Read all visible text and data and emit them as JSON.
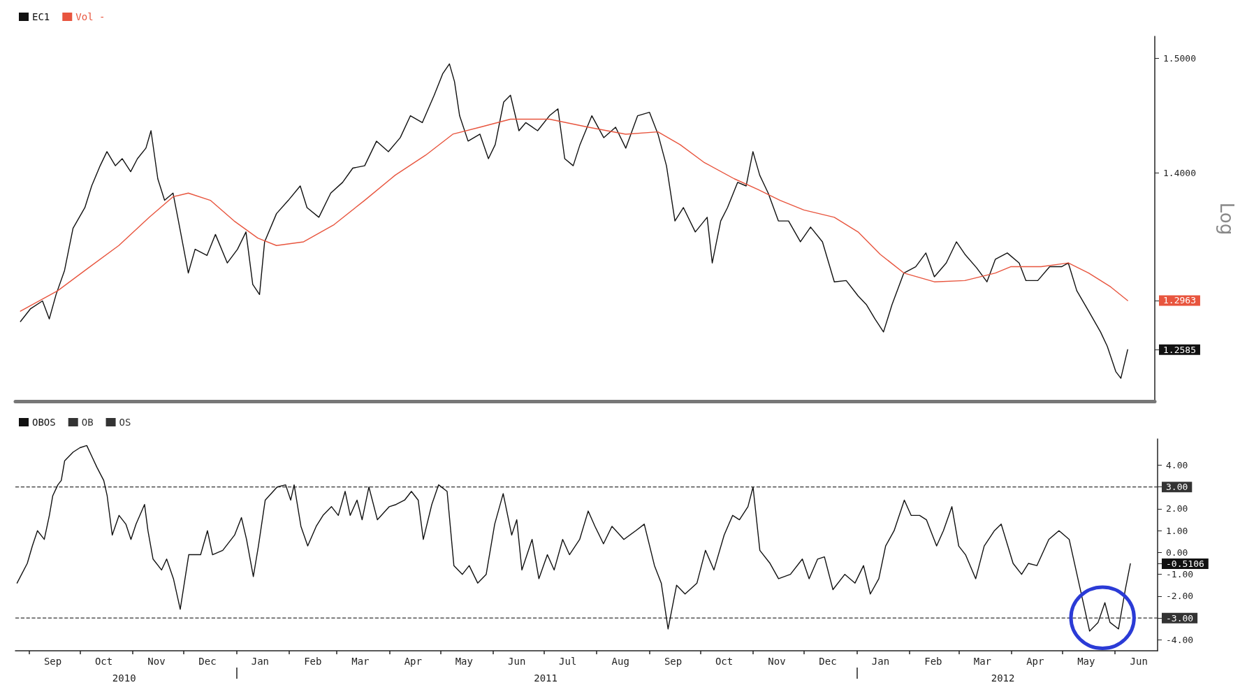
{
  "chart_data": [
    {
      "type": "line",
      "legend": "top left",
      "marker": "none",
      "log": true,
      "tick_labels": "y",
      "ylabel": "Log",
      "xlim": [
        "2010-08-24",
        "2012-06-26"
      ],
      "ylim": [
        1.22,
        1.52
      ],
      "yticks": [
        {
          "value": 1.5,
          "label": "1.5000"
        },
        {
          "value": 1.4,
          "label": "1.4000"
        },
        {
          "value": 1.2963,
          "label": "1.2963"
        },
        {
          "value": 1.2585,
          "label": "1.2585"
        }
      ],
      "series": [
        {
          "name": "EC1",
          "color": "#111111",
          "x": [
            "2010-08-27",
            "2010-09-02",
            "2010-09-09",
            "2010-09-13",
            "2010-09-17",
            "2010-09-22",
            "2010-09-27",
            "2010-10-04",
            "2010-10-08",
            "2010-10-13",
            "2010-10-17",
            "2010-10-22",
            "2010-10-26",
            "2010-10-31",
            "2010-11-04",
            "2010-11-09",
            "2010-11-12",
            "2010-11-16",
            "2010-11-20",
            "2010-11-25",
            "2010-11-29",
            "2010-12-04",
            "2010-12-08",
            "2010-12-15",
            "2010-12-20",
            "2010-12-27",
            "2011-01-02",
            "2011-01-07",
            "2011-01-11",
            "2011-01-15",
            "2011-01-18",
            "2011-01-25",
            "2011-02-01",
            "2011-02-08",
            "2011-02-12",
            "2011-02-19",
            "2011-02-26",
            "2011-03-05",
            "2011-03-11",
            "2011-03-18",
            "2011-03-25",
            "2011-04-01",
            "2011-04-08",
            "2011-04-14",
            "2011-04-21",
            "2011-04-28",
            "2011-05-03",
            "2011-05-07",
            "2011-05-10",
            "2011-05-13",
            "2011-05-18",
            "2011-05-25",
            "2011-05-30",
            "2011-06-03",
            "2011-06-08",
            "2011-06-12",
            "2011-06-17",
            "2011-06-21",
            "2011-06-28",
            "2011-07-05",
            "2011-07-10",
            "2011-07-14",
            "2011-07-19",
            "2011-07-23",
            "2011-07-30",
            "2011-08-06",
            "2011-08-13",
            "2011-08-19",
            "2011-08-26",
            "2011-09-02",
            "2011-09-07",
            "2011-09-12",
            "2011-09-17",
            "2011-09-22",
            "2011-09-29",
            "2011-10-06",
            "2011-10-09",
            "2011-10-14",
            "2011-10-18",
            "2011-10-24",
            "2011-10-29",
            "2011-11-02",
            "2011-11-06",
            "2011-11-11",
            "2011-11-17",
            "2011-11-23",
            "2011-11-30",
            "2011-12-06",
            "2011-12-13",
            "2011-12-20",
            "2011-12-27",
            "2012-01-03",
            "2012-01-08",
            "2012-01-13",
            "2012-01-18",
            "2012-01-23",
            "2012-01-30",
            "2012-02-06",
            "2012-02-12",
            "2012-02-17",
            "2012-02-24",
            "2012-03-01",
            "2012-03-06",
            "2012-03-13",
            "2012-03-19",
            "2012-03-24",
            "2012-03-31",
            "2012-04-07",
            "2012-04-11",
            "2012-04-18",
            "2012-04-25",
            "2012-05-02",
            "2012-05-06",
            "2012-05-11",
            "2012-05-18",
            "2012-05-25",
            "2012-05-29",
            "2012-06-03",
            "2012-06-06",
            "2012-06-10"
          ],
          "values": [
            1.28,
            1.29,
            1.296,
            1.282,
            1.301,
            1.32,
            1.354,
            1.371,
            1.389,
            1.406,
            1.418,
            1.406,
            1.412,
            1.401,
            1.412,
            1.421,
            1.436,
            1.395,
            1.377,
            1.383,
            1.354,
            1.318,
            1.337,
            1.332,
            1.349,
            1.326,
            1.337,
            1.351,
            1.309,
            1.301,
            1.343,
            1.366,
            1.377,
            1.389,
            1.371,
            1.363,
            1.383,
            1.392,
            1.404,
            1.406,
            1.427,
            1.418,
            1.43,
            1.449,
            1.443,
            1.467,
            1.486,
            1.495,
            1.479,
            1.449,
            1.427,
            1.433,
            1.412,
            1.424,
            1.461,
            1.467,
            1.436,
            1.443,
            1.436,
            1.449,
            1.455,
            1.412,
            1.406,
            1.424,
            1.449,
            1.43,
            1.439,
            1.421,
            1.449,
            1.452,
            1.433,
            1.406,
            1.36,
            1.371,
            1.351,
            1.363,
            1.326,
            1.36,
            1.371,
            1.392,
            1.389,
            1.418,
            1.398,
            1.383,
            1.36,
            1.36,
            1.343,
            1.355,
            1.343,
            1.311,
            1.312,
            1.3,
            1.293,
            1.282,
            1.272,
            1.293,
            1.318,
            1.323,
            1.334,
            1.315,
            1.326,
            1.343,
            1.333,
            1.322,
            1.311,
            1.329,
            1.334,
            1.326,
            1.312,
            1.312,
            1.323,
            1.323,
            1.326,
            1.304,
            1.288,
            1.272,
            1.261,
            1.242,
            1.237,
            1.2585
          ]
        },
        {
          "name": "Vol -",
          "color": "#e8553e",
          "x": [
            "2010-08-27",
            "2010-09-18",
            "2010-10-06",
            "2010-10-24",
            "2010-11-11",
            "2010-11-25",
            "2010-12-04",
            "2010-12-17",
            "2010-12-31",
            "2011-01-14",
            "2011-01-25",
            "2011-02-10",
            "2011-02-28",
            "2011-03-18",
            "2011-04-05",
            "2011-04-23",
            "2011-05-09",
            "2011-05-25",
            "2011-06-12",
            "2011-07-05",
            "2011-07-28",
            "2011-08-19",
            "2011-09-07",
            "2011-09-20",
            "2011-10-04",
            "2011-10-22",
            "2011-11-05",
            "2011-11-18",
            "2011-12-02",
            "2011-12-20",
            "2012-01-03",
            "2012-01-16",
            "2012-01-30",
            "2012-02-17",
            "2012-03-06",
            "2012-03-24",
            "2012-04-02",
            "2012-04-20",
            "2012-05-06",
            "2012-05-18",
            "2012-05-31",
            "2012-06-10"
          ],
          "values": [
            1.288,
            1.304,
            1.322,
            1.34,
            1.363,
            1.38,
            1.383,
            1.377,
            1.36,
            1.346,
            1.34,
            1.343,
            1.357,
            1.377,
            1.398,
            1.415,
            1.433,
            1.439,
            1.446,
            1.446,
            1.439,
            1.433,
            1.435,
            1.424,
            1.409,
            1.395,
            1.386,
            1.377,
            1.369,
            1.363,
            1.351,
            1.333,
            1.318,
            1.311,
            1.312,
            1.318,
            1.323,
            1.323,
            1.326,
            1.318,
            1.307,
            1.2963
          ]
        }
      ]
    },
    {
      "type": "line",
      "legend": "top left",
      "marker": "none",
      "xlim": [
        "2010-08-24",
        "2012-06-26"
      ],
      "ylim": [
        -4.5,
        5.2
      ],
      "yticks": [
        {
          "value": 4,
          "label": "4.00"
        },
        {
          "value": 3,
          "label": "3.00"
        },
        {
          "value": 2,
          "label": "2.00"
        },
        {
          "value": 1,
          "label": "1.00"
        },
        {
          "value": 0,
          "label": "0.00"
        },
        {
          "value": -0.5106,
          "label": "-0.5106"
        },
        {
          "value": -1,
          "label": "-1.00"
        },
        {
          "value": -2,
          "label": "-2.00"
        },
        {
          "value": -3,
          "label": "-3.00"
        },
        {
          "value": -4,
          "label": "-4.00"
        }
      ],
      "xticks": [
        {
          "value": "2010-09-01",
          "label": null
        },
        {
          "value": "2010-09-15",
          "label": "Sep"
        },
        {
          "value": "2010-10-01",
          "label": null
        },
        {
          "value": "2010-10-15",
          "label": "Oct"
        },
        {
          "value": "2010-11-01",
          "label": null
        },
        {
          "value": "2010-11-15",
          "label": "Nov"
        },
        {
          "value": "2010-12-01",
          "label": null
        },
        {
          "value": "2010-12-15",
          "label": "Dec"
        },
        {
          "value": "2011-01-01",
          "label": null
        },
        {
          "value": "2011-01-15",
          "label": "Jan"
        },
        {
          "value": "2011-02-01",
          "label": null
        },
        {
          "value": "2011-02-15",
          "label": "Feb"
        },
        {
          "value": "2011-03-01",
          "label": null
        },
        {
          "value": "2011-03-15",
          "label": "Mar"
        },
        {
          "value": "2011-04-01",
          "label": null
        },
        {
          "value": "2011-04-15",
          "label": "Apr"
        },
        {
          "value": "2011-05-01",
          "label": null
        },
        {
          "value": "2011-05-15",
          "label": "May"
        },
        {
          "value": "2011-06-01",
          "label": null
        },
        {
          "value": "2011-06-15",
          "label": "Jun"
        },
        {
          "value": "2011-07-01",
          "label": null
        },
        {
          "value": "2011-07-15",
          "label": "Jul"
        },
        {
          "value": "2011-08-01",
          "label": null
        },
        {
          "value": "2011-08-15",
          "label": "Aug"
        },
        {
          "value": "2011-09-01",
          "label": null
        },
        {
          "value": "2011-09-15",
          "label": "Sep"
        },
        {
          "value": "2011-10-01",
          "label": null
        },
        {
          "value": "2011-10-15",
          "label": "Oct"
        },
        {
          "value": "2011-11-01",
          "label": null
        },
        {
          "value": "2011-11-15",
          "label": "Nov"
        },
        {
          "value": "2011-12-01",
          "label": null
        },
        {
          "value": "2011-12-15",
          "label": "Dec"
        },
        {
          "value": "2012-01-01",
          "label": null
        },
        {
          "value": "2012-01-15",
          "label": "Jan"
        },
        {
          "value": "2012-02-01",
          "label": null
        },
        {
          "value": "2012-02-15",
          "label": "Feb"
        },
        {
          "value": "2012-03-01",
          "label": null
        },
        {
          "value": "2012-03-15",
          "label": "Mar"
        },
        {
          "value": "2012-04-01",
          "label": null
        },
        {
          "value": "2012-04-15",
          "label": "Apr"
        },
        {
          "value": "2012-05-01",
          "label": null
        },
        {
          "value": "2012-05-15",
          "label": "May"
        },
        {
          "value": "2012-06-01",
          "label": null
        },
        {
          "value": "2012-06-15",
          "label": "Jun"
        }
      ],
      "x2lim": [
        "2010-08-24",
        "2012-06-26"
      ],
      "x2ticks": [
        {
          "value": "2010-10-27",
          "label": "2010"
        },
        {
          "value": "2011-01-01",
          "label": null
        },
        {
          "value": "2011-07-02",
          "label": "2011"
        },
        {
          "value": "2012-01-01",
          "label": null
        },
        {
          "value": "2012-03-27",
          "label": "2012"
        }
      ],
      "ref_lines": [
        {
          "axis": "y",
          "value": 3,
          "label": "OB",
          "color": "#333333",
          "line_style": "dashed"
        },
        {
          "axis": "y",
          "value": -3,
          "label": "OS",
          "color": "#333333",
          "line_style": "dashed"
        }
      ],
      "series": [
        {
          "name": "OBOS",
          "color": "#111111",
          "x": [
            "2010-08-25",
            "2010-08-31",
            "2010-09-03",
            "2010-09-06",
            "2010-09-10",
            "2010-09-13",
            "2010-09-15",
            "2010-09-18",
            "2010-09-20",
            "2010-09-22",
            "2010-09-27",
            "2010-10-01",
            "2010-10-05",
            "2010-10-08",
            "2010-10-11",
            "2010-10-15",
            "2010-10-17",
            "2010-10-20",
            "2010-10-24",
            "2010-10-28",
            "2010-10-31",
            "2010-11-03",
            "2010-11-08",
            "2010-11-10",
            "2010-11-13",
            "2010-11-18",
            "2010-11-21",
            "2010-11-25",
            "2010-11-29",
            "2010-12-04",
            "2010-12-11",
            "2010-12-15",
            "2010-12-18",
            "2010-12-24",
            "2010-12-31",
            "2011-01-04",
            "2011-01-07",
            "2011-01-11",
            "2011-01-14",
            "2011-01-18",
            "2011-01-25",
            "2011-01-30",
            "2011-02-02",
            "2011-02-04",
            "2011-02-08",
            "2011-02-12",
            "2011-02-17",
            "2011-02-21",
            "2011-02-26",
            "2011-03-02",
            "2011-03-06",
            "2011-03-09",
            "2011-03-13",
            "2011-03-16",
            "2011-03-20",
            "2011-03-25",
            "2011-04-01",
            "2011-04-05",
            "2011-04-10",
            "2011-04-14",
            "2011-04-18",
            "2011-04-21",
            "2011-04-26",
            "2011-04-30",
            "2011-05-05",
            "2011-05-09",
            "2011-05-14",
            "2011-05-18",
            "2011-05-23",
            "2011-05-28",
            "2011-06-02",
            "2011-06-07",
            "2011-06-12",
            "2011-06-15",
            "2011-06-18",
            "2011-06-24",
            "2011-06-28",
            "2011-07-03",
            "2011-07-07",
            "2011-07-12",
            "2011-07-16",
            "2011-07-22",
            "2011-07-27",
            "2011-07-31",
            "2011-08-05",
            "2011-08-10",
            "2011-08-17",
            "2011-08-24",
            "2011-08-29",
            "2011-09-04",
            "2011-09-08",
            "2011-09-12",
            "2011-09-17",
            "2011-09-22",
            "2011-09-29",
            "2011-10-04",
            "2011-10-09",
            "2011-10-15",
            "2011-10-20",
            "2011-10-24",
            "2011-10-29",
            "2011-11-01",
            "2011-11-05",
            "2011-11-11",
            "2011-11-16",
            "2011-11-23",
            "2011-11-30",
            "2011-12-04",
            "2011-12-09",
            "2011-12-13",
            "2011-12-18",
            "2011-12-25",
            "2011-12-31",
            "2012-01-05",
            "2012-01-09",
            "2012-01-14",
            "2012-01-18",
            "2012-01-23",
            "2012-01-29",
            "2012-02-02",
            "2012-02-07",
            "2012-02-11",
            "2012-02-17",
            "2012-02-21",
            "2012-02-26",
            "2012-03-01",
            "2012-03-05",
            "2012-03-11",
            "2012-03-16",
            "2012-03-22",
            "2012-03-26",
            "2012-04-02",
            "2012-04-07",
            "2012-04-11",
            "2012-04-16",
            "2012-04-23",
            "2012-04-29",
            "2012-05-05",
            "2012-05-11",
            "2012-05-17",
            "2012-05-22",
            "2012-05-26",
            "2012-05-29",
            "2012-06-03",
            "2012-06-07",
            "2012-06-10"
          ],
          "values": [
            -1.4,
            -0.5,
            0.3,
            1.0,
            0.6,
            1.7,
            2.6,
            3.1,
            3.3,
            4.2,
            4.6,
            4.8,
            4.9,
            4.4,
            3.9,
            3.3,
            2.6,
            0.8,
            1.7,
            1.3,
            0.6,
            1.3,
            2.2,
            1.0,
            -0.3,
            -0.8,
            -0.3,
            -1.2,
            -2.6,
            -0.1,
            -0.1,
            1.0,
            -0.1,
            0.1,
            0.8,
            1.6,
            0.6,
            -1.1,
            0.3,
            2.4,
            3.0,
            3.1,
            2.4,
            3.1,
            1.2,
            0.3,
            1.2,
            1.7,
            2.1,
            1.7,
            2.8,
            1.7,
            2.4,
            1.5,
            3.0,
            1.5,
            2.1,
            2.2,
            2.4,
            2.8,
            2.4,
            0.6,
            2.2,
            3.1,
            2.8,
            -0.6,
            -1.0,
            -0.6,
            -1.4,
            -1.0,
            1.3,
            2.7,
            0.8,
            1.5,
            -0.8,
            0.6,
            -1.2,
            -0.1,
            -0.8,
            0.6,
            -0.1,
            0.6,
            1.9,
            1.2,
            0.4,
            1.2,
            0.6,
            1.0,
            1.3,
            -0.6,
            -1.4,
            -3.5,
            -1.5,
            -1.9,
            -1.4,
            0.1,
            -0.8,
            0.8,
            1.7,
            1.5,
            2.1,
            3.0,
            0.1,
            -0.5,
            -1.2,
            -1.0,
            -0.3,
            -1.2,
            -0.3,
            -0.2,
            -1.7,
            -1.0,
            -1.4,
            -0.6,
            -1.9,
            -1.2,
            0.3,
            1.0,
            2.4,
            1.7,
            1.7,
            1.5,
            0.3,
            1.0,
            2.1,
            0.3,
            -0.1,
            -1.2,
            0.3,
            1.0,
            1.3,
            -0.5,
            -1.0,
            -0.5,
            -0.6,
            0.6,
            1.0,
            0.6,
            -1.5,
            -3.6,
            -3.2,
            -2.3,
            -3.2,
            -3.5,
            -1.7,
            -0.5106
          ]
        }
      ]
    }
  ]
}
